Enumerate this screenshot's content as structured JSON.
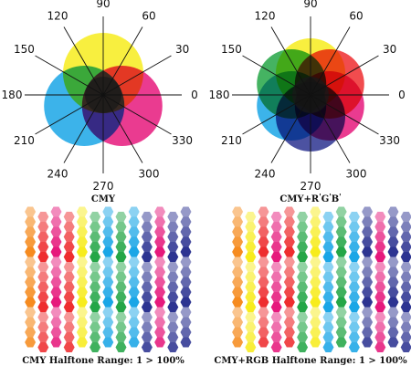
{
  "colors": {
    "cyan": "#1aa6e6",
    "magenta": "#e6197c",
    "yellow": "#f7ec1d",
    "red": "#ee2d2f",
    "green": "#24a647",
    "blue": "#2d3491",
    "black": "#1a1a1a",
    "orange": "#f68b1f"
  },
  "wheel_left": {
    "caption": "CMY",
    "angles": [
      "90",
      "60",
      "30",
      "0",
      "330",
      "300",
      "270",
      "240",
      "210",
      "180",
      "150",
      "120"
    ],
    "circles": [
      "yellow",
      "magenta",
      "cyan"
    ]
  },
  "wheel_right": {
    "caption": "CMY+RGB",
    "caption_base": "CMY+R",
    "caption_mid": "G",
    "caption_end": "B",
    "angles": [
      "90",
      "60",
      "30",
      "0",
      "330",
      "300",
      "270",
      "240",
      "210",
      "180",
      "150",
      "120"
    ],
    "circles": [
      "yellow",
      "red",
      "magenta",
      "blue",
      "cyan",
      "green"
    ]
  },
  "halftone_left": {
    "caption": "CMY Halftone Range: 1 > 100%",
    "columns": [
      "orange",
      "red",
      "magenta",
      "red",
      "yellow",
      "green",
      "cyan",
      "green",
      "cyan",
      "blue",
      "magenta",
      "blue",
      "blue"
    ]
  },
  "halftone_right": {
    "caption": "CMY+RGB Halftone Range: 1 > 100%",
    "columns": [
      "orange",
      "yellow",
      "red",
      "magenta",
      "red",
      "green",
      "yellow",
      "cyan",
      "green",
      "cyan",
      "blue",
      "magenta",
      "blue",
      "blue"
    ]
  }
}
